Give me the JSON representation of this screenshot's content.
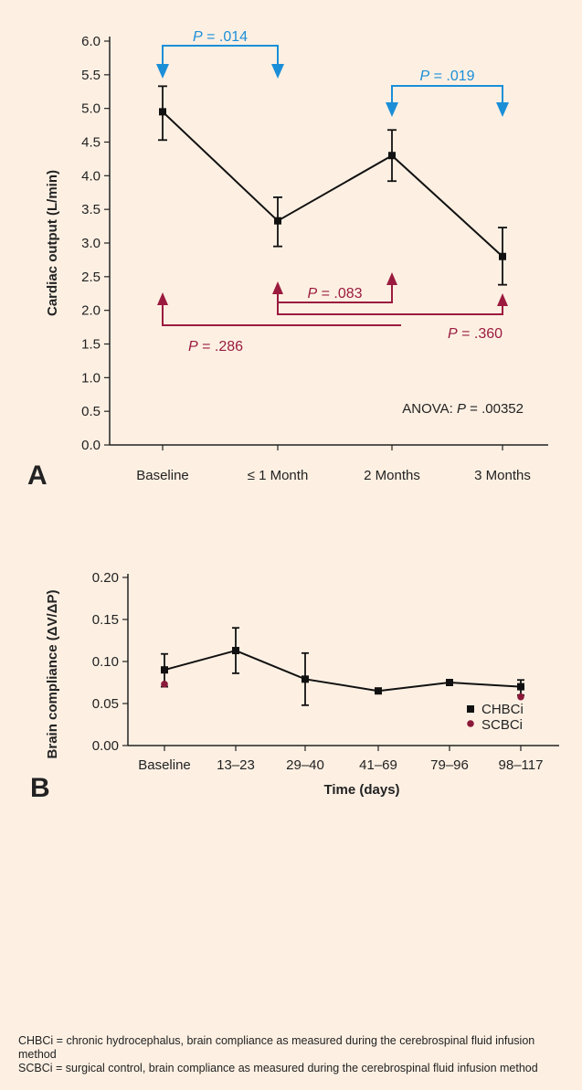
{
  "chart_data": [
    {
      "panel_label": "A",
      "type": "line",
      "ylabel": "Cardiac output (L/min)",
      "xlabel": "",
      "categories": [
        "Baseline",
        "≤ 1 Month",
        "2 Months",
        "3 Months"
      ],
      "values": [
        4.95,
        3.33,
        4.3,
        2.8
      ],
      "error_low": [
        4.53,
        2.95,
        3.92,
        2.38
      ],
      "error_high": [
        5.33,
        3.68,
        4.68,
        3.23
      ],
      "ylim": [
        0,
        6
      ],
      "yticks": [
        "0.0",
        "0.5",
        "1.0",
        "1.5",
        "2.0",
        "2.5",
        "3.0",
        "3.5",
        "4.0",
        "4.5",
        "5.0",
        "5.5",
        "6.0"
      ],
      "annotation": {
        "label": "ANOVA: ",
        "p_symbol": "P",
        "p_text": " = .00352"
      },
      "comparisons": [
        {
          "from": "Baseline",
          "to": "≤ 1 Month",
          "p_symbol": "P",
          "p_text": " = .014",
          "color": "#1a8fd8"
        },
        {
          "from": "2 Months",
          "to": "3 Months",
          "p_symbol": "P",
          "p_text": " = .019",
          "color": "#1a8fd8"
        },
        {
          "from": "≤ 1 Month",
          "to": "2 Months",
          "p_symbol": "P",
          "p_text": " = .083",
          "color": "#9b1b3f"
        },
        {
          "from": "≤ 1 Month",
          "to": "3 Months",
          "p_symbol": "P",
          "p_text": " = .360",
          "color": "#9b1b3f"
        },
        {
          "from": "Baseline",
          "to": "2 Months",
          "p_symbol": "P",
          "p_text": " = .286",
          "color": "#9b1b3f"
        }
      ]
    },
    {
      "panel_label": "B",
      "type": "line",
      "ylabel": "Brain compliance (ΔV/ΔP)",
      "xlabel": "Time (days)",
      "categories": [
        "Baseline",
        "13–23",
        "29–40",
        "41–69",
        "79–96",
        "98–117"
      ],
      "ylim": [
        0,
        0.2
      ],
      "yticks": [
        "0.00",
        "0.05",
        "0.10",
        "0.15",
        "0.20"
      ],
      "series": [
        {
          "name": "CHBCi",
          "color": "#111111",
          "marker": "square",
          "values": [
            0.09,
            0.113,
            0.079,
            0.065,
            0.075,
            0.07
          ],
          "error_low": [
            0.07,
            0.086,
            0.048,
            0.065,
            0.072,
            0.06
          ],
          "error_high": [
            0.109,
            0.14,
            0.11,
            0.065,
            0.078,
            0.078
          ]
        },
        {
          "name": "SCBCi",
          "color": "#8b1a3a",
          "marker": "circle",
          "points": [
            {
              "category": "Baseline",
              "value": 0.073
            },
            {
              "category": "98–117",
              "value": 0.058
            }
          ]
        }
      ],
      "legend_position": "bottom-right"
    }
  ],
  "footnotes": [
    "CHBCi = chronic hydrocephalus, brain compliance as measured during the cere­brospinal fluid infusion method",
    "SCBCi = surgical control, brain compliance as measured during the cerebrospinal fluid infusion method"
  ]
}
